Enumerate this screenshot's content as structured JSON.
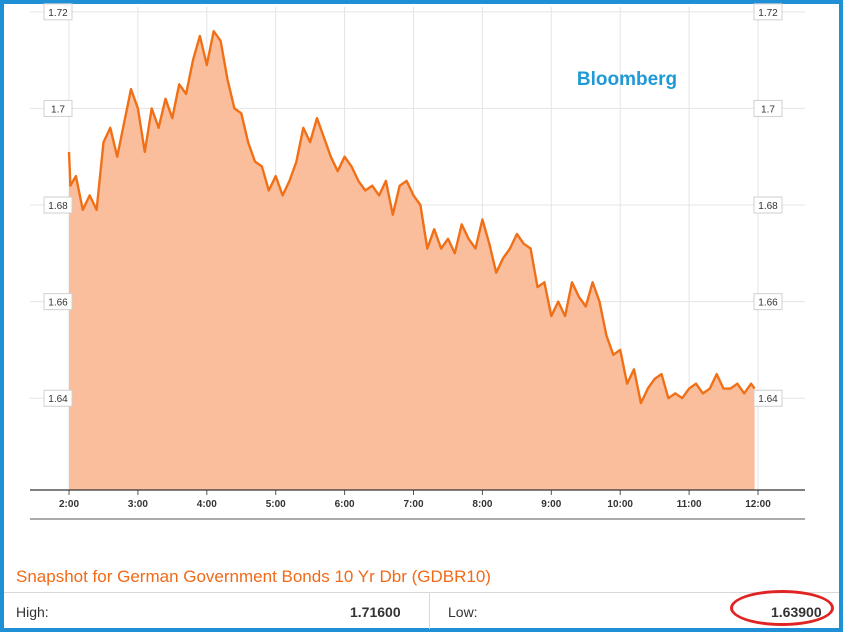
{
  "brand": "Bloomberg",
  "colors": {
    "line": "#f07018",
    "fill": "#fbbe9c",
    "brand": "#1f9ad6",
    "frame": "#1f8fd6",
    "highlight": "#e02424"
  },
  "snapshot": {
    "title": "Snapshot for German Government Bonds 10 Yr Dbr (GDBR10)",
    "high_label": "High:",
    "high_value": "1.71600",
    "low_label": "Low:",
    "low_value": "1.63900"
  },
  "chart_data": {
    "type": "area",
    "title": "",
    "xlabel": "",
    "ylabel": "",
    "x_ticks": [
      "2:00",
      "3:00",
      "4:00",
      "5:00",
      "6:00",
      "7:00",
      "8:00",
      "9:00",
      "10:00",
      "11:00",
      "12:00"
    ],
    "y_ticks": [
      "1.72",
      "1.7",
      "1.68",
      "1.66",
      "1.64"
    ],
    "y_tick_values": [
      1.72,
      1.7,
      1.68,
      1.66,
      1.64
    ],
    "ylim": [
      1.621,
      1.721
    ],
    "xlim": [
      2,
      12
    ],
    "grid": true,
    "series": [
      {
        "x": [
          2.0,
          2.02,
          2.1,
          2.2,
          2.3,
          2.4,
          2.5,
          2.6,
          2.7,
          2.8,
          2.9,
          3.0,
          3.1,
          3.2,
          3.3,
          3.4,
          3.5,
          3.6,
          3.7,
          3.8,
          3.9,
          4.0,
          4.1,
          4.2,
          4.3,
          4.4,
          4.5,
          4.6,
          4.7,
          4.8,
          4.9,
          5.0,
          5.1,
          5.2,
          5.3,
          5.4,
          5.5,
          5.6,
          5.7,
          5.8,
          5.9,
          6.0,
          6.1,
          6.2,
          6.3,
          6.4,
          6.5,
          6.6,
          6.7,
          6.8,
          6.9,
          7.0,
          7.1,
          7.2,
          7.3,
          7.4,
          7.5,
          7.6,
          7.7,
          7.8,
          7.9,
          8.0,
          8.1,
          8.2,
          8.3,
          8.4,
          8.5,
          8.6,
          8.7,
          8.8,
          8.9,
          9.0,
          9.1,
          9.2,
          9.3,
          9.4,
          9.5,
          9.6,
          9.7,
          9.8,
          9.9,
          10.0,
          10.1,
          10.2,
          10.3,
          10.4,
          10.5,
          10.6,
          10.7,
          10.8,
          10.9,
          11.0,
          11.1,
          11.2,
          11.3,
          11.4,
          11.5,
          11.6,
          11.7,
          11.8,
          11.9,
          11.95
        ],
        "values": [
          1.691,
          1.684,
          1.686,
          1.679,
          1.682,
          1.679,
          1.693,
          1.696,
          1.69,
          1.697,
          1.704,
          1.7,
          1.691,
          1.7,
          1.696,
          1.702,
          1.698,
          1.705,
          1.703,
          1.71,
          1.715,
          1.709,
          1.716,
          1.714,
          1.706,
          1.7,
          1.699,
          1.693,
          1.689,
          1.688,
          1.683,
          1.686,
          1.682,
          1.685,
          1.689,
          1.696,
          1.693,
          1.698,
          1.694,
          1.69,
          1.687,
          1.69,
          1.688,
          1.685,
          1.683,
          1.684,
          1.682,
          1.685,
          1.678,
          1.684,
          1.685,
          1.682,
          1.68,
          1.671,
          1.675,
          1.671,
          1.673,
          1.67,
          1.676,
          1.673,
          1.671,
          1.677,
          1.672,
          1.666,
          1.669,
          1.671,
          1.674,
          1.672,
          1.671,
          1.663,
          1.664,
          1.657,
          1.66,
          1.657,
          1.664,
          1.661,
          1.659,
          1.664,
          1.66,
          1.653,
          1.649,
          1.65,
          1.643,
          1.646,
          1.639,
          1.642,
          1.644,
          1.645,
          1.64,
          1.641,
          1.64,
          1.642,
          1.643,
          1.641,
          1.642,
          1.645,
          1.642,
          1.642,
          1.643,
          1.641,
          1.643,
          1.642
        ]
      }
    ]
  }
}
